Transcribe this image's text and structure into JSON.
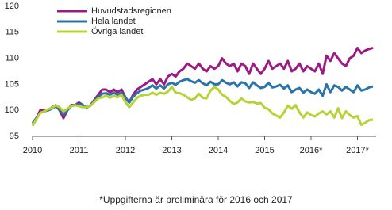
{
  "chart_data": {
    "type": "line",
    "footnote": "*Uppgifterna är preliminära för 2016 och 2017",
    "categories": [
      "2010",
      null,
      null,
      null,
      null,
      null,
      null,
      null,
      null,
      null,
      null,
      null,
      "2011",
      null,
      null,
      null,
      null,
      null,
      null,
      null,
      null,
      null,
      null,
      null,
      "2012",
      null,
      null,
      null,
      null,
      null,
      null,
      null,
      null,
      null,
      null,
      null,
      "2013",
      null,
      null,
      null,
      null,
      null,
      null,
      null,
      null,
      null,
      null,
      null,
      "2014",
      null,
      null,
      null,
      null,
      null,
      null,
      null,
      null,
      null,
      null,
      null,
      "2015",
      null,
      null,
      null,
      null,
      null,
      null,
      null,
      null,
      null,
      null,
      null,
      "2016*",
      null,
      null,
      null,
      null,
      null,
      null,
      null,
      null,
      null,
      null,
      null,
      "2017*",
      null,
      null,
      null,
      null
    ],
    "series": [
      {
        "name": "Huvudstadsregionen",
        "color": "#9b1b82",
        "values": [
          97.5,
          98.5,
          100,
          100,
          100,
          100.5,
          101,
          100,
          98.5,
          100,
          101,
          101,
          101.5,
          101,
          100.5,
          101,
          102,
          103,
          104,
          104,
          103.5,
          104,
          103.5,
          104,
          102.5,
          101.5,
          103,
          104,
          104.5,
          105,
          105.5,
          106,
          105,
          106,
          105,
          106.5,
          107,
          106.5,
          107.5,
          108,
          109,
          108.5,
          108,
          109,
          108,
          107.5,
          108.5,
          108,
          108.5,
          110,
          109,
          108.5,
          109,
          107.5,
          109,
          108.5,
          107,
          109,
          108,
          107,
          108,
          109.5,
          108,
          108.5,
          109,
          108,
          109.5,
          107.5,
          108,
          109,
          107.5,
          108.5,
          108,
          107.5,
          109,
          107,
          110.5,
          109.5,
          111,
          110,
          109,
          108.5,
          110,
          110.5,
          112,
          111,
          111.5,
          111.8,
          112
        ]
      },
      {
        "name": "Hela landet",
        "color": "#2a74a7",
        "values": [
          97.5,
          98.5,
          99.5,
          99.8,
          100,
          100.3,
          100.8,
          100.2,
          99.2,
          100,
          100.8,
          101,
          101.2,
          101,
          100.6,
          100.9,
          101.8,
          102.6,
          103.2,
          103.3,
          103,
          103.4,
          103,
          103.4,
          102.4,
          101.5,
          102.6,
          103.3,
          103.8,
          104,
          104.3,
          104.8,
          104.2,
          104.8,
          104.2,
          105,
          105.3,
          104.9,
          105.5,
          105.8,
          106,
          105.6,
          105.3,
          105.8,
          105.2,
          104.8,
          105.5,
          105,
          105,
          105.8,
          105.3,
          105,
          105.4,
          104.6,
          105.4,
          105.2,
          104.3,
          105.4,
          104.8,
          104.3,
          104.5,
          105.3,
          104.4,
          104.6,
          104.9,
          104.2,
          104.8,
          103.5,
          104,
          104.3,
          103.4,
          104,
          103.5,
          103.2,
          104,
          102.8,
          105,
          103.5,
          104.8,
          104.5,
          103.8,
          104.5,
          104,
          103.5,
          104.8,
          103.8,
          104,
          104.4,
          104.6
        ]
      },
      {
        "name": "Övriga landet",
        "color": "#b5d334",
        "values": [
          97,
          98.3,
          99.5,
          99.8,
          100.2,
          100.4,
          101,
          100.6,
          99.8,
          100.3,
          100.8,
          101,
          100.8,
          100.6,
          100.6,
          100.9,
          101.6,
          102.3,
          102.5,
          102.8,
          102.4,
          102.8,
          102.5,
          103,
          101.6,
          100.6,
          101.5,
          102.4,
          102.8,
          103,
          103,
          103.4,
          103,
          103.4,
          103.2,
          103.6,
          104.5,
          103.4,
          103.3,
          103,
          102.5,
          102,
          102.3,
          103.2,
          102.4,
          102.3,
          103.8,
          104.5,
          104,
          103,
          102.6,
          101.8,
          101.2,
          101.5,
          102.3,
          101.7,
          101.5,
          101.6,
          101.3,
          101.4,
          100.5,
          100.2,
          99.4,
          99,
          98.6,
          99.6,
          100.9,
          100.3,
          101,
          99.6,
          98.6,
          99.6,
          99.1,
          98.8,
          99.4,
          99.8,
          99.2,
          99.8,
          98.6,
          100.4,
          98.5,
          99.8,
          99.1,
          98.6,
          98.9,
          97.2,
          97.6,
          98.1,
          98.2
        ]
      }
    ],
    "ylim": [
      95,
      120
    ],
    "yticks": [
      95,
      100,
      105,
      110,
      115,
      120
    ],
    "grid": false,
    "legend": "top-left"
  }
}
